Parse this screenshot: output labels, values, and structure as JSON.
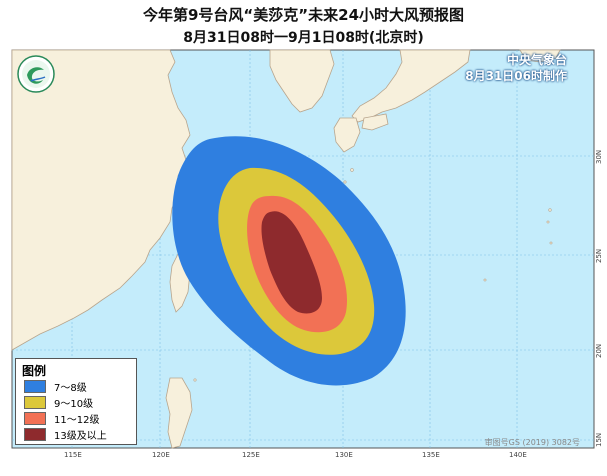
{
  "title": {
    "line1": "今年第9号台风“美莎克”未来24小时大风预报图",
    "line2": "8月31日08时一9月1日08时(北京时)"
  },
  "issuer": {
    "name": "中央气象台",
    "issued": "8月31日06时制作"
  },
  "legend": {
    "title": "图例",
    "items": [
      {
        "label": "7～8级",
        "color": "#2f7fe0"
      },
      {
        "label": "9～10级",
        "color": "#dcc83a"
      },
      {
        "label": "11～12级",
        "color": "#f27155"
      },
      {
        "label": "13级及以上",
        "color": "#8e2a2d"
      }
    ]
  },
  "approval_number": "审图号GS (2019) 3082号",
  "longitude_ticks": [
    "115E",
    "120E",
    "125E",
    "130E",
    "135E",
    "140E"
  ],
  "latitude_ticks": [
    "30N",
    "25N",
    "20N",
    "15N"
  ],
  "colors": {
    "sea": "#c4ecfb",
    "land": "#f7f0dc",
    "border": "#b8a58d",
    "grid": "#7fc0e6"
  }
}
